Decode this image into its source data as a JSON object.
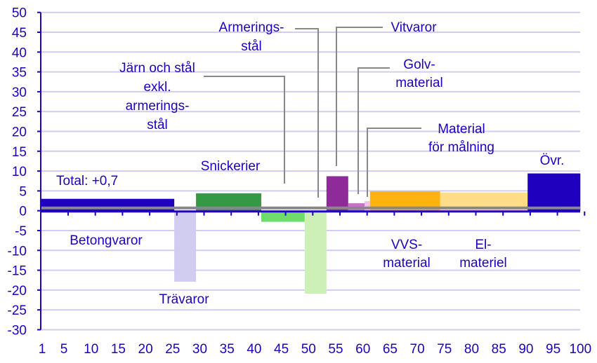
{
  "chart_data": {
    "type": "bar",
    "variant": "variable-width",
    "title": "",
    "xlabel": "",
    "ylabel": "",
    "xlim": [
      1,
      100
    ],
    "ylim": [
      -30,
      50
    ],
    "xticks": [
      1,
      5,
      10,
      15,
      20,
      25,
      30,
      35,
      40,
      45,
      50,
      55,
      60,
      65,
      70,
      75,
      80,
      85,
      90,
      95,
      100
    ],
    "yticks": [
      -30,
      -25,
      -20,
      -15,
      -10,
      -5,
      0,
      5,
      10,
      15,
      20,
      25,
      30,
      35,
      40,
      45,
      50
    ],
    "grid": "horizontal",
    "total": {
      "label": "Total: +0,7",
      "value": 0.7,
      "color": "#888888"
    },
    "bars": [
      {
        "label": "Betongvaror",
        "x0": 0.6,
        "x1": 25.3,
        "value": 3.0,
        "color": "#1e00be"
      },
      {
        "label": "Trävaror",
        "x0": 25.3,
        "x1": 29.3,
        "value": -17.9,
        "color": "#d0cdf0"
      },
      {
        "label": "Snickerier",
        "x0": 29.3,
        "x1": 41.3,
        "value": 4.4,
        "color": "#339944"
      },
      {
        "label": "Järn och stål exkl. armerings-stål",
        "x0": 41.3,
        "x1": 49.3,
        "value": -2.8,
        "color": "#70dd6a"
      },
      {
        "label": "Armerings-stål",
        "x0": 49.3,
        "x1": 53.3,
        "value": -20.9,
        "color": "#ccf0b5"
      },
      {
        "label": "Vitvaror",
        "x0": 53.3,
        "x1": 57.3,
        "value": 8.7,
        "color": "#8e2a9a"
      },
      {
        "label": "Golv-material",
        "x0": 57.3,
        "x1": 60.3,
        "value": 1.9,
        "color": "#cc70cc"
      },
      {
        "label": "Material för målning",
        "x0": 60.3,
        "x1": 61.3,
        "value": 2.4,
        "color": "#f0c0e8"
      },
      {
        "label": "VVS-material",
        "x0": 61.3,
        "x1": 74.2,
        "value": 4.9,
        "color": "#ffb30f"
      },
      {
        "label": "El-materiel",
        "x0": 74.2,
        "x1": 90.3,
        "value": 4.6,
        "color": "#fedc88"
      },
      {
        "label": "Övr.",
        "x0": 90.3,
        "x1": 100,
        "value": 9.4,
        "color": "#1e00be"
      }
    ],
    "label_lines": {
      "betong": [
        "Betongvaror"
      ],
      "tra": [
        "Trävaror"
      ],
      "snick": [
        "Snickerier"
      ],
      "jarn": [
        "Järn och stål",
        "exkl.",
        "armerings-",
        "stål"
      ],
      "arm": [
        "Armerings-",
        "stål"
      ],
      "vit": [
        "Vitvaror"
      ],
      "golv": [
        "Golv-",
        "material"
      ],
      "malning": [
        "Material",
        "för målning"
      ],
      "vvs": [
        "VVS-",
        "material"
      ],
      "el": [
        "El-",
        "materiel"
      ],
      "ovr": [
        "Övr."
      ]
    },
    "axis_color": "#1e00be",
    "grid_color": "#d2ccf0"
  }
}
